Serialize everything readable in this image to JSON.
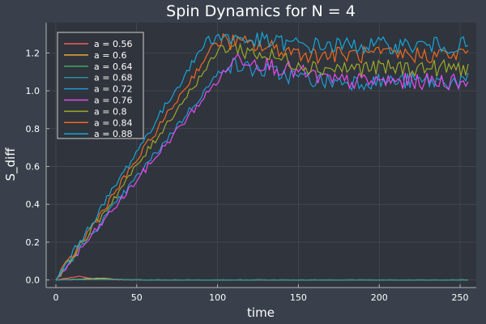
{
  "chart_data": {
    "type": "line",
    "title": "Spin Dynamics for N = 4",
    "xlabel": "time",
    "ylabel": "S_diff",
    "xlim": [
      -6,
      260
    ],
    "ylim": [
      -0.04,
      1.36
    ],
    "xticks": [
      0,
      50,
      100,
      150,
      200,
      250
    ],
    "yticks": [
      0.0,
      0.2,
      0.4,
      0.6,
      0.8,
      1.0,
      1.2
    ],
    "xtick_labels": [
      "0",
      "50",
      "100",
      "150",
      "200",
      "250"
    ],
    "ytick_labels": [
      "0.0",
      "0.2",
      "0.4",
      "0.6",
      "0.8",
      "1.0",
      "1.2"
    ],
    "grid": true,
    "legend_position": "top-left",
    "x_range": [
      0,
      256
    ],
    "series": [
      {
        "name": "a = 0.56",
        "color": "#f45b5b",
        "peak_time": 15,
        "peak_value": 0.02,
        "plateau_value": 0.0
      },
      {
        "name": "a = 0.6",
        "color": "#e8a93c",
        "peak_time": 30,
        "peak_value": 0.01,
        "plateau_value": 0.0
      },
      {
        "name": "a = 0.64",
        "color": "#3fa86a",
        "peak_time": 35,
        "peak_value": 0.005,
        "plateau_value": 0.0
      },
      {
        "name": "a = 0.68",
        "color": "#2a8fa0",
        "peak_time": 40,
        "peak_value": 0.003,
        "plateau_value": 0.0
      },
      {
        "name": "a = 0.72",
        "color": "#1e9bd7",
        "peak_time": 105,
        "peak_value": 1.14,
        "plateau_value": 1.05
      },
      {
        "name": "a = 0.76",
        "color": "#e64bf0",
        "peak_time": 112,
        "peak_value": 1.18,
        "plateau_value": 1.05
      },
      {
        "name": "a = 0.8",
        "color": "#9da82a",
        "peak_time": 103,
        "peak_value": 1.24,
        "plateau_value": 1.12
      },
      {
        "name": "a = 0.84",
        "color": "#f06a1e",
        "peak_time": 100,
        "peak_value": 1.27,
        "plateau_value": 1.19
      },
      {
        "name": "a = 0.88",
        "color": "#16a6d8",
        "peak_time": 95,
        "peak_value": 1.29,
        "plateau_value": 1.24
      }
    ]
  },
  "colors": {
    "background": "#39404b",
    "plot_area": "#30343c",
    "grid": "#4a505a",
    "legend_background": "#30343c",
    "legend_border": "#d0d0d0",
    "text": "#ffffff"
  }
}
